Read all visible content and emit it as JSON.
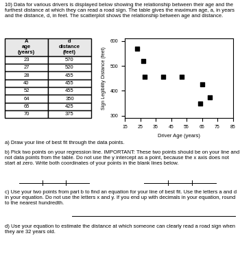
{
  "chart_data": {
    "type": "scatter",
    "title": "10) Data for various drivers is displayed below showing the relationship between their age and the furthest distance at which they can read a road sign. The table gives the maximum age, a, in years and the distance, d, in feet. The scatterplot shows the relationship between age and distance.",
    "x": [
      23,
      27,
      28,
      40,
      52,
      64,
      65,
      70
    ],
    "values": [
      570,
      520,
      455,
      455,
      455,
      350,
      425,
      375
    ],
    "xlabel": "Driver Age (years)",
    "ylabel": "Sign Legibility Distance (feet)",
    "xlim": [
      15,
      85
    ],
    "ylim": [
      290,
      610
    ],
    "xticks": [
      15,
      25,
      35,
      45,
      55,
      65,
      75,
      85
    ],
    "yticks": [
      300,
      400,
      500,
      600
    ],
    "marker": "square",
    "color": "#000000",
    "grid": false,
    "table_columns": [
      "A\nage\n(years)",
      "d\ndistance\n(feet)"
    ],
    "annotations": [
      "a) Draw your line of best fit through the data points.",
      "b) Pick two points on your regression line. IMPORTANT: These two points should be on your line and not data points from the table. Do not use the y intercept as a point, because the x axis does not start at zero. Write both coordinates of your points in the blank lines below.",
      "c) Use your two points from part b to find an equation for your line of best fit. Use the letters a and d in your equation. Do not use the letters x and y. If you end up with decimals in your equation, round to the nearest hundredth.",
      "d) Use your equation to estimate the distance at which someone can clearly read a road sign when they are 32 years old."
    ]
  }
}
